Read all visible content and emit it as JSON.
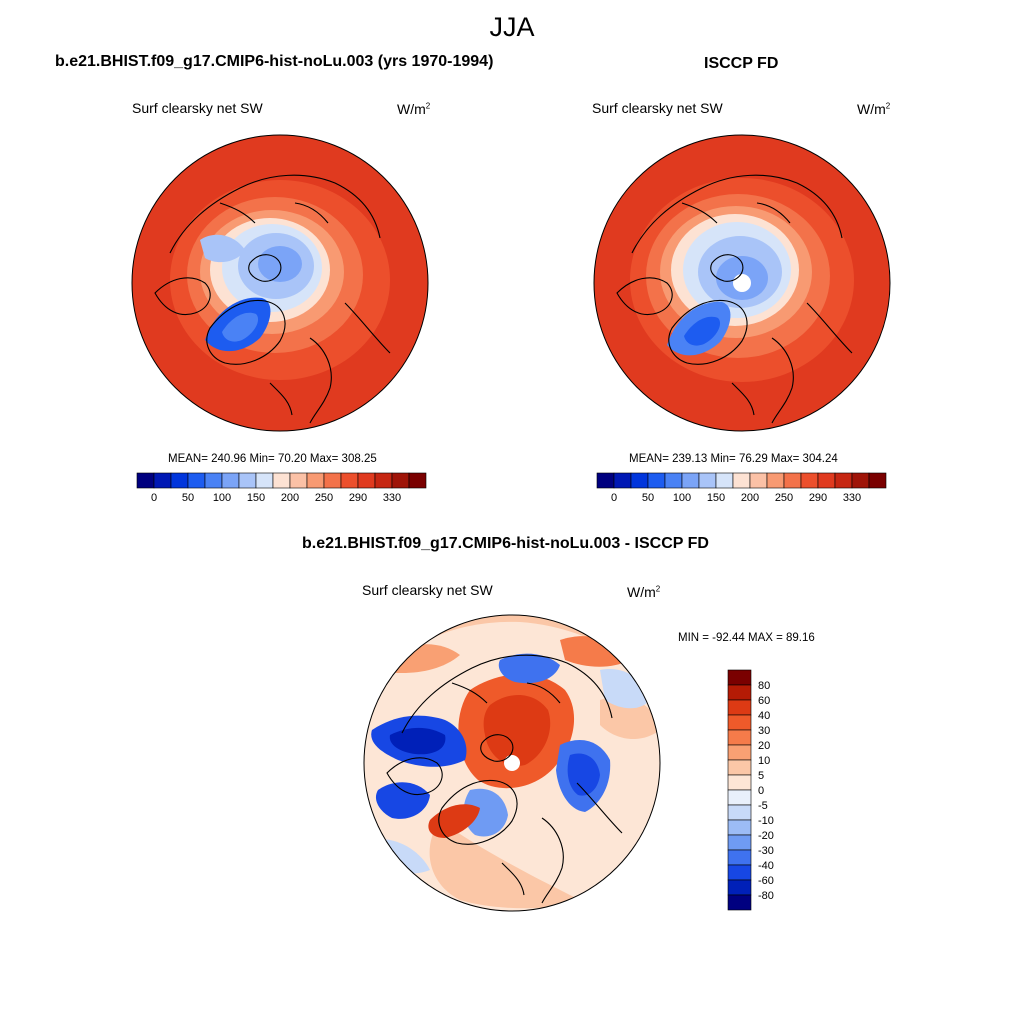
{
  "figure": {
    "season": "JJA"
  },
  "panels": [
    {
      "title": "b.e21.BHIST.f09_g17.CMIP6-hist-noLu.003 (yrs 1970-1994)",
      "variable": "Surf clearsky net SW",
      "units_base": "W/m",
      "units_exp": "2",
      "stats": "MEAN= 240.96  Min=  70.20  Max= 308.25"
    },
    {
      "title": "ISCCP FD",
      "variable": "Surf clearsky net SW",
      "units_base": "W/m",
      "units_exp": "2",
      "stats": "MEAN= 239.13  Min=  76.29  Max= 304.24"
    },
    {
      "title": "b.e21.BHIST.f09_g17.CMIP6-hist-noLu.003 - ISCCP FD",
      "variable": "Surf clearsky net SW",
      "units_base": "W/m",
      "units_exp": "2",
      "stats": "MIN = -92.44 MAX =  89.16"
    }
  ],
  "colorbars": {
    "absolute": {
      "labels": [
        "0",
        "50",
        "100",
        "150",
        "200",
        "250",
        "290",
        "330"
      ],
      "colors": [
        "#00007f",
        "#0018b4",
        "#0035dc",
        "#1d5cf0",
        "#4a82f5",
        "#7ba4f7",
        "#a9c4f8",
        "#d6e4f9",
        "#fde2d3",
        "#fbc1a6",
        "#f89a72",
        "#f3724a",
        "#ec4f2c",
        "#e03a1f",
        "#c62612",
        "#9f1408",
        "#7a0000"
      ]
    },
    "difference": {
      "labels": [
        "80",
        "60",
        "40",
        "30",
        "20",
        "10",
        "5",
        "0",
        "-5",
        "-10",
        "-20",
        "-30",
        "-40",
        "-60",
        "-80"
      ],
      "colors": [
        "#7a0000",
        "#b51b05",
        "#dd3a14",
        "#ef5a2a",
        "#f57b4a",
        "#f9a073",
        "#fbc7a7",
        "#fde6d6",
        "#e9f0fb",
        "#c8daf8",
        "#9cbcf6",
        "#6f9bf3",
        "#3f72ef",
        "#1747e4",
        "#0020b8",
        "#000080"
      ]
    }
  }
}
